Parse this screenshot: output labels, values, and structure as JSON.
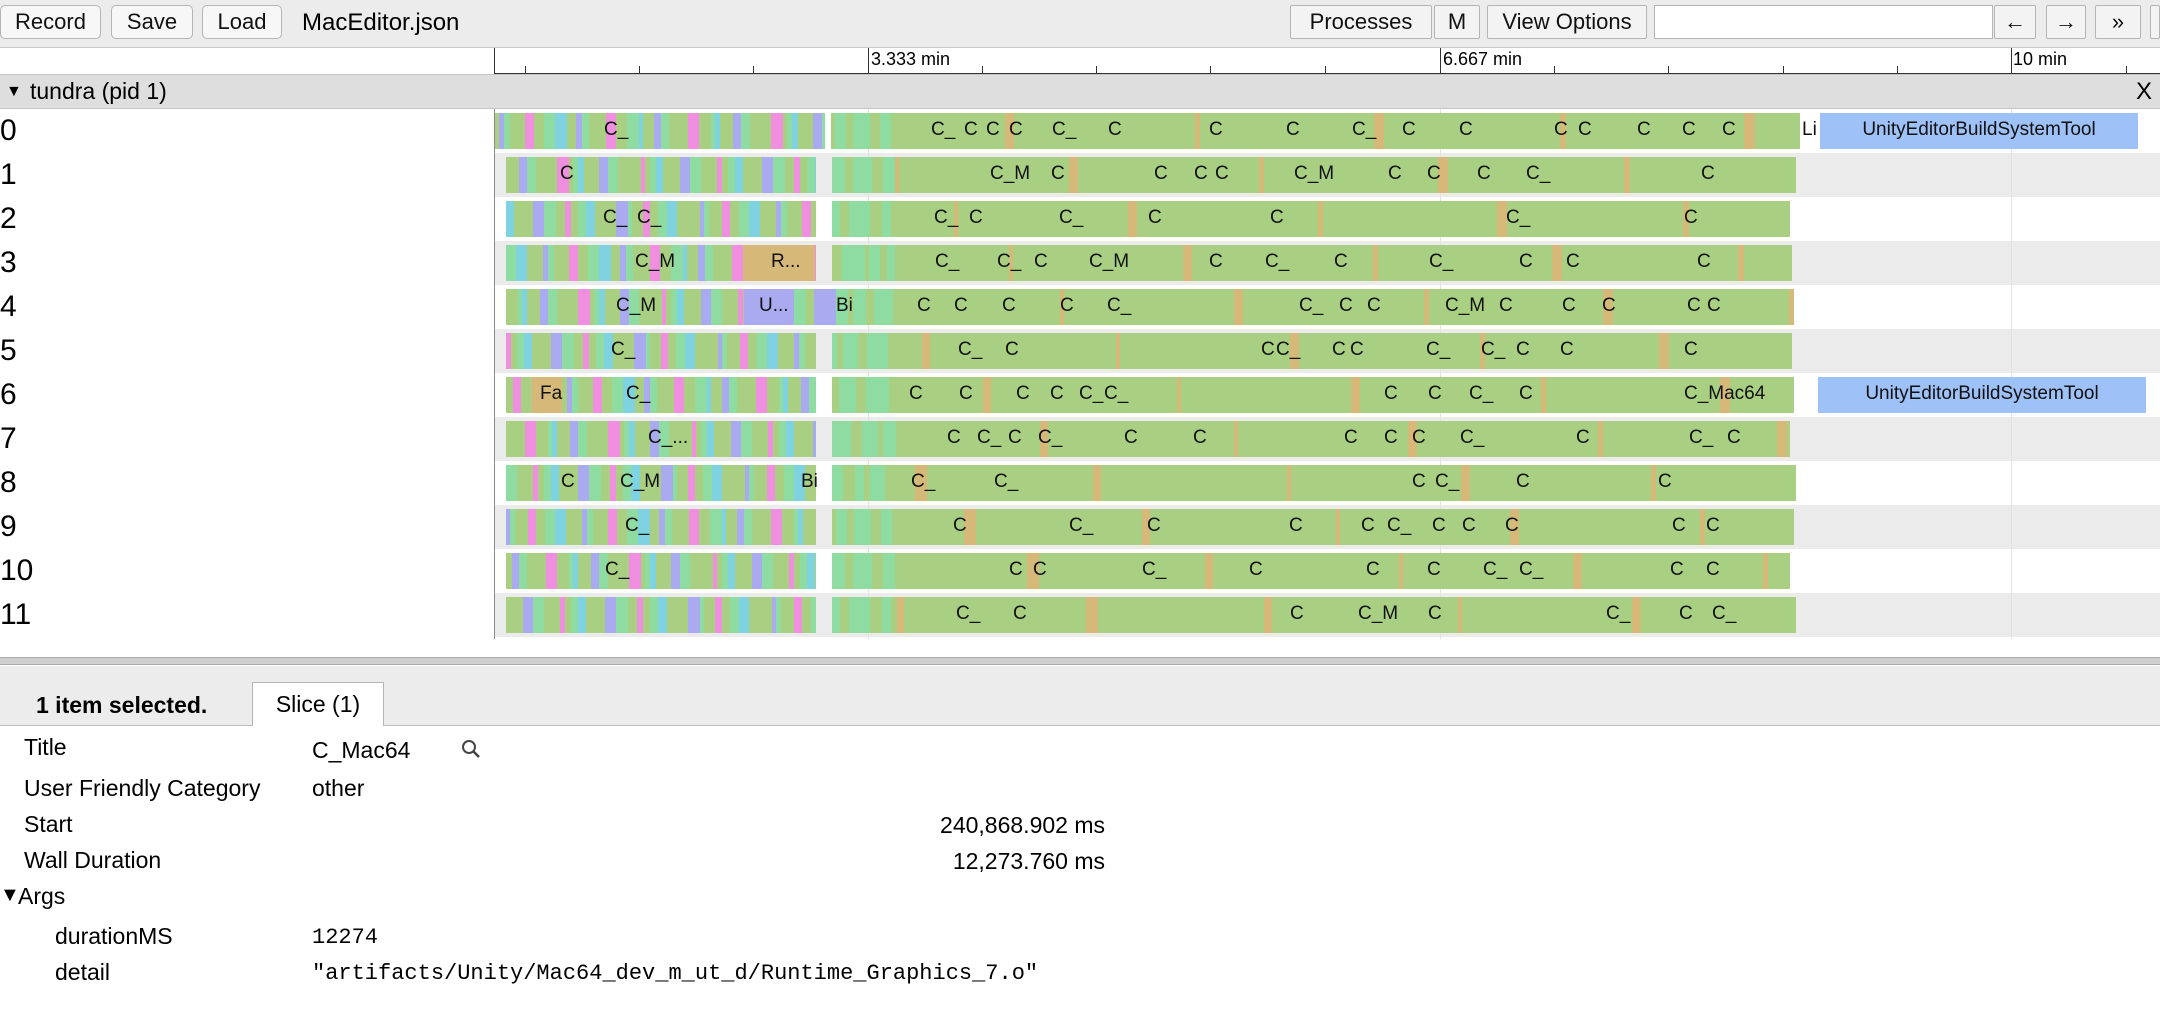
{
  "toolbar": {
    "record_label": "Record",
    "save_label": "Save",
    "load_label": "Load",
    "file_title": "MacEditor.json",
    "processes_label": "Processes",
    "m_label": "M",
    "view_options_label": "View Options",
    "search_value": "",
    "prev_label": "←",
    "next_label": "→",
    "more_label": "»"
  },
  "ruler": {
    "labels": [
      "3.333 min",
      "6.667 min",
      "10 min"
    ]
  },
  "process": {
    "caret": "▼",
    "name": "tundra (pid 1)",
    "close_label": "X"
  },
  "tracks": [
    {
      "label": "0",
      "slices": [
        "C_",
        "C_",
        "C",
        "C",
        "C",
        "C_",
        "C",
        "C",
        "C",
        "C_",
        "C",
        "C",
        "C",
        "C",
        "C",
        "C",
        "C",
        "Li",
        "UnityEditorBuildSystemTool"
      ]
    },
    {
      "label": "1",
      "slices": [
        "C",
        "C_M",
        "C",
        "C",
        "C",
        "C",
        "C_M",
        "C",
        "C",
        "C",
        "C_",
        "C"
      ]
    },
    {
      "label": "2",
      "slices": [
        "C_",
        "C_",
        "C_",
        "C",
        "C_",
        "C",
        "C",
        "C_",
        "C"
      ]
    },
    {
      "label": "3",
      "slices": [
        "C_M",
        "R...",
        "C_",
        "C_",
        "C",
        "C_M",
        "C",
        "C_",
        "C",
        "C_",
        "C",
        "C",
        "C"
      ]
    },
    {
      "label": "4",
      "slices": [
        "C_M",
        "U...",
        "Bi",
        "C",
        "C",
        "C",
        "C",
        "C_",
        "C_",
        "C",
        "C",
        "C_M",
        "C",
        "C",
        "C",
        "C",
        "C"
      ]
    },
    {
      "label": "5",
      "slices": [
        "C_",
        "C_",
        "C",
        "C",
        "C_",
        "C",
        "C",
        "C_",
        "C_",
        "C",
        "C",
        "C"
      ]
    },
    {
      "label": "6",
      "slices": [
        "Fa",
        "C_",
        "C",
        "C",
        "C",
        "C",
        "C_",
        "C_",
        "C",
        "C",
        "C_",
        "C",
        "C_Mac64",
        "UnityEditorBuildSystemTool"
      ]
    },
    {
      "label": "7",
      "slices": [
        "C_...",
        "C",
        "C_",
        "C",
        "C_",
        "C",
        "C",
        "C",
        "C",
        "C",
        "C_",
        "C",
        "C_",
        "C"
      ]
    },
    {
      "label": "8",
      "slices": [
        "C",
        "C_M",
        "Bi",
        "C_",
        "C_",
        "C",
        "C_",
        "C",
        "C"
      ]
    },
    {
      "label": "9",
      "slices": [
        "C_",
        "C",
        "C_",
        "C",
        "C",
        "C",
        "C_",
        "C",
        "C",
        "C",
        "C",
        "C"
      ]
    },
    {
      "label": "10",
      "slices": [
        "C_",
        "C",
        "C",
        "C_",
        "C",
        "C",
        "C",
        "C_",
        "C_",
        "C",
        "C"
      ]
    },
    {
      "label": "11",
      "slices": [
        "C_",
        "C",
        "C",
        "C_M",
        "C",
        "C_",
        "C",
        "C_"
      ]
    }
  ],
  "colors": {
    "green": "#a8cf82",
    "mint": "#8fdca3",
    "pink": "#f08ee0",
    "cyan": "#7fd3e0",
    "lavender": "#a9aaf0",
    "tan": "#d6b878",
    "blue_slice": "#9ec1f7"
  },
  "bottom_panel": {
    "selected_count": "1 item selected.",
    "tab_label": "Slice (1)"
  },
  "details": {
    "title_key": "Title",
    "title_value": "C_Mac64",
    "category_key": "User Friendly Category",
    "category_value": "other",
    "start_key": "Start",
    "start_value": "240,868.902 ms",
    "wall_duration_key": "Wall Duration",
    "wall_duration_value": "12,273.760 ms",
    "args_caret": "▼",
    "args_key": "Args",
    "duration_ms_key": "durationMS",
    "duration_ms_value": "12274",
    "detail_key": "detail",
    "detail_value": "\"artifacts/Unity/Mac64_dev_m_ut_d/Runtime_Graphics_7.o\""
  }
}
